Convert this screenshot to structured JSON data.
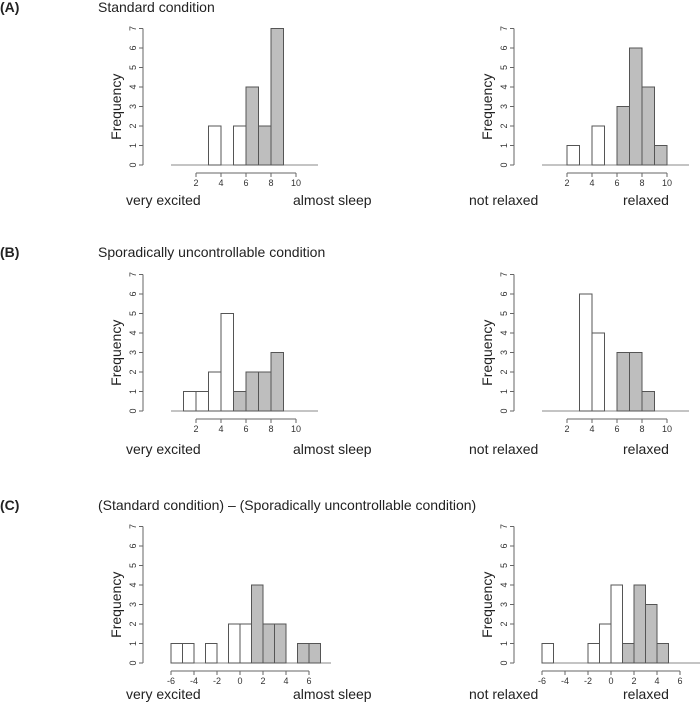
{
  "panels": [
    {
      "label": "(A)",
      "title": "Standard condition"
    },
    {
      "label": "(B)",
      "title": "Sporadically uncontrollable condition"
    },
    {
      "label": "(C)",
      "title": "(Standard condition) – (Sporadically uncontrollable condition)"
    }
  ],
  "colors": {
    "filled": "#bebebe",
    "empty": "#ffffff",
    "stroke": "#555555"
  },
  "chart_data": [
    {
      "id": "A-left",
      "type": "bar",
      "ylabel": "Frequency",
      "xlim": [
        0,
        10
      ],
      "ylim": [
        0,
        7
      ],
      "xticks": [
        2,
        4,
        6,
        8,
        10
      ],
      "yticks": [
        0,
        1,
        2,
        3,
        4,
        5,
        6,
        7
      ],
      "bins": [
        [
          1,
          2,
          0,
          false
        ],
        [
          2,
          3,
          0,
          false
        ],
        [
          3,
          4,
          2,
          false
        ],
        [
          4,
          5,
          0,
          false
        ],
        [
          5,
          6,
          2,
          false
        ],
        [
          6,
          7,
          4,
          true
        ],
        [
          7,
          8,
          2,
          true
        ],
        [
          8,
          9,
          7,
          true
        ],
        [
          9,
          10,
          0,
          true
        ]
      ],
      "scale_left": "very excited",
      "scale_right": "almost sleep"
    },
    {
      "id": "A-right",
      "type": "bar",
      "ylabel": "Frequency",
      "xlim": [
        0,
        10
      ],
      "ylim": [
        0,
        7
      ],
      "xticks": [
        2,
        4,
        6,
        8,
        10
      ],
      "yticks": [
        0,
        1,
        2,
        3,
        4,
        5,
        6,
        7
      ],
      "bins": [
        [
          1,
          2,
          0,
          false
        ],
        [
          2,
          3,
          1,
          false
        ],
        [
          3,
          4,
          0,
          false
        ],
        [
          4,
          5,
          2,
          false
        ],
        [
          5,
          6,
          0,
          false
        ],
        [
          6,
          7,
          3,
          true
        ],
        [
          7,
          8,
          6,
          true
        ],
        [
          8,
          9,
          4,
          true
        ],
        [
          9,
          10,
          1,
          true
        ]
      ],
      "scale_left": "not relaxed",
      "scale_right": "relaxed"
    },
    {
      "id": "B-left",
      "type": "bar",
      "ylabel": "Frequency",
      "xlim": [
        0,
        10
      ],
      "ylim": [
        0,
        7
      ],
      "xticks": [
        2,
        4,
        6,
        8,
        10
      ],
      "yticks": [
        0,
        1,
        2,
        3,
        4,
        5,
        6,
        7
      ],
      "bins": [
        [
          1,
          2,
          1,
          false
        ],
        [
          2,
          3,
          1,
          false
        ],
        [
          3,
          4,
          2,
          false
        ],
        [
          4,
          5,
          5,
          false
        ],
        [
          5,
          6,
          1,
          true
        ],
        [
          6,
          7,
          2,
          true
        ],
        [
          7,
          8,
          2,
          true
        ],
        [
          8,
          9,
          3,
          true
        ]
      ],
      "scale_left": "very excited",
      "scale_right": "almost sleep"
    },
    {
      "id": "B-right",
      "type": "bar",
      "ylabel": "Frequency",
      "xlim": [
        0,
        10
      ],
      "ylim": [
        0,
        7
      ],
      "xticks": [
        2,
        4,
        6,
        8,
        10
      ],
      "yticks": [
        0,
        1,
        2,
        3,
        4,
        5,
        6,
        7
      ],
      "bins": [
        [
          0,
          3,
          0,
          false
        ],
        [
          3,
          4,
          6,
          false
        ],
        [
          4,
          5,
          4,
          false
        ],
        [
          5,
          6,
          0,
          false
        ],
        [
          6,
          7,
          3,
          true
        ],
        [
          7,
          8,
          3,
          true
        ],
        [
          8,
          9,
          1,
          true
        ]
      ],
      "scale_left": "not relaxed",
      "scale_right": "relaxed"
    },
    {
      "id": "C-left",
      "type": "bar",
      "ylabel": "Frequency",
      "xlim": [
        -6,
        6
      ],
      "ylim": [
        0,
        7
      ],
      "xticks": [
        -6,
        -4,
        -2,
        0,
        2,
        4,
        6
      ],
      "yticks": [
        0,
        1,
        2,
        3,
        4,
        5,
        6,
        7
      ],
      "bins": [
        [
          -6,
          -5,
          1,
          false
        ],
        [
          -5,
          -4,
          1,
          false
        ],
        [
          -4,
          -3,
          0,
          false
        ],
        [
          -3,
          -2,
          1,
          false
        ],
        [
          -2,
          -1,
          0,
          false
        ],
        [
          -1,
          0,
          2,
          false
        ],
        [
          0,
          1,
          2,
          false
        ],
        [
          1,
          2,
          4,
          true
        ],
        [
          2,
          3,
          2,
          true
        ],
        [
          3,
          4,
          2,
          true
        ],
        [
          4,
          5,
          0,
          true
        ],
        [
          5,
          6,
          1,
          true
        ],
        [
          6,
          7,
          1,
          true
        ]
      ],
      "scale_left": "very excited",
      "scale_right": "almost sleep"
    },
    {
      "id": "C-right",
      "type": "bar",
      "ylabel": "Frequency",
      "xlim": [
        -6,
        6
      ],
      "ylim": [
        0,
        7
      ],
      "xticks": [
        -6,
        -4,
        -2,
        0,
        2,
        4,
        6
      ],
      "yticks": [
        0,
        1,
        2,
        3,
        4,
        5,
        6,
        7
      ],
      "bins": [
        [
          -6,
          -5,
          1,
          false
        ],
        [
          -5,
          -4,
          0,
          false
        ],
        [
          -4,
          -3,
          0,
          false
        ],
        [
          -3,
          -2,
          0,
          false
        ],
        [
          -2,
          -1,
          1,
          false
        ],
        [
          -1,
          0,
          2,
          false
        ],
        [
          0,
          1,
          4,
          false
        ],
        [
          1,
          2,
          1,
          true
        ],
        [
          2,
          3,
          4,
          true
        ],
        [
          3,
          4,
          3,
          true
        ],
        [
          4,
          5,
          1,
          true
        ]
      ],
      "scale_left": "not relaxed",
      "scale_right": "relaxed"
    }
  ]
}
